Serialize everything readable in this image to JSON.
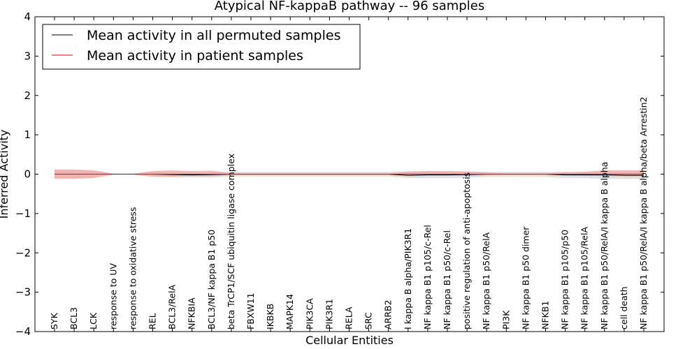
{
  "chart_data": {
    "type": "line",
    "title": "Atypical NF-kappaB pathway -- 96 samples",
    "xlabel": "Cellular Entities",
    "ylabel": "Inferred Activity",
    "ylim": [
      -4,
      4
    ],
    "yticks": [
      -4,
      -3,
      -2,
      -1,
      0,
      1,
      2,
      3,
      4
    ],
    "ytick_labels": [
      "−4",
      "−3",
      "−2",
      "−1",
      "0",
      "1",
      "2",
      "3",
      "4"
    ],
    "legend_position": "top-left",
    "categories": [
      "SYK",
      "BCL3",
      "LCK",
      "response to UV",
      "response to oxidative stress",
      "REL",
      "BCL3/RelA",
      "NFKBIA",
      "BCL3/NF kappa B1 p50",
      "beta TrCP1/SCF ubiquitin ligase complex",
      "FBXW11",
      "IKBKB",
      "MAPK14",
      "PIK3CA",
      "PIK3R1",
      "RELA",
      "SRC",
      "ARRB2",
      "I kappa B alpha/PIK3R1",
      "NF kappa B1 p105/c-Rel",
      "NF kappa B1 p50/c-Rel",
      "positive regulation of anti-apoptosis",
      "NF kappa B1 p50/RelA",
      "PI3K",
      "NF kappa B1 p50 dimer",
      "NFKB1",
      "NF kappa B1 p105/p50",
      "NF kappa B1 p105/RelA",
      "NF kappa B1 p50/RelA/I kappa B alpha",
      "cell death",
      "NF kappa B1 p50/RelA/I kappa B alpha/beta Arrestin2"
    ],
    "series": [
      {
        "name": "Mean activity in all permuted samples",
        "color": "#000000",
        "values": [
          0,
          0,
          0,
          0,
          0,
          0,
          -0.01,
          -0.02,
          -0.01,
          0,
          0,
          0,
          0,
          0,
          0,
          0,
          0,
          0,
          -0.03,
          -0.02,
          -0.02,
          -0.01,
          0,
          0,
          0,
          0,
          -0.02,
          -0.02,
          -0.02,
          -0.03,
          -0.03
        ],
        "band_upper": [
          0.1,
          0.1,
          0.08,
          0.02,
          0.02,
          0.06,
          0.06,
          0.05,
          0.06,
          0.06,
          0.06,
          0.06,
          0.06,
          0.06,
          0.06,
          0.06,
          0.06,
          0.06,
          0.07,
          0.07,
          0.07,
          0.07,
          0.06,
          0.06,
          0.06,
          0.06,
          0.06,
          0.06,
          0.08,
          0.08,
          0.08
        ],
        "band_lower": [
          -0.1,
          -0.1,
          -0.08,
          -0.02,
          -0.02,
          -0.07,
          -0.08,
          -0.08,
          -0.08,
          -0.06,
          -0.06,
          -0.06,
          -0.06,
          -0.06,
          -0.06,
          -0.06,
          -0.06,
          -0.06,
          -0.1,
          -0.1,
          -0.1,
          -0.09,
          -0.07,
          -0.07,
          -0.07,
          -0.07,
          -0.1,
          -0.1,
          -0.12,
          -0.12,
          -0.12
        ],
        "band_color": "#d6d6d6"
      },
      {
        "name": "Mean activity in patient samples",
        "color": "#ff0000",
        "values": [
          0,
          0,
          0,
          0,
          0,
          0,
          0,
          0,
          0,
          0,
          0,
          0,
          0,
          0,
          0,
          0,
          0,
          0,
          0,
          0,
          0,
          0,
          0,
          0,
          0,
          0,
          0,
          0,
          0,
          0,
          0
        ],
        "band_upper": [
          0.12,
          0.12,
          0.1,
          0.01,
          0.01,
          0.08,
          0.1,
          0.08,
          0.09,
          0.02,
          0.02,
          0.02,
          0.02,
          0.02,
          0.02,
          0.02,
          0.02,
          0.02,
          0.07,
          0.08,
          0.08,
          0.07,
          0.04,
          0.02,
          0.02,
          0.02,
          0.05,
          0.06,
          0.1,
          0.1,
          0.1
        ],
        "band_lower": [
          -0.12,
          -0.12,
          -0.1,
          -0.01,
          -0.01,
          -0.06,
          -0.06,
          -0.05,
          -0.06,
          -0.02,
          -0.02,
          -0.02,
          -0.02,
          -0.02,
          -0.02,
          -0.02,
          -0.02,
          -0.02,
          -0.04,
          -0.04,
          -0.04,
          -0.04,
          -0.03,
          -0.02,
          -0.02,
          -0.02,
          -0.03,
          -0.04,
          -0.05,
          -0.05,
          -0.05
        ],
        "band_color": "#f4a0a0"
      }
    ]
  }
}
